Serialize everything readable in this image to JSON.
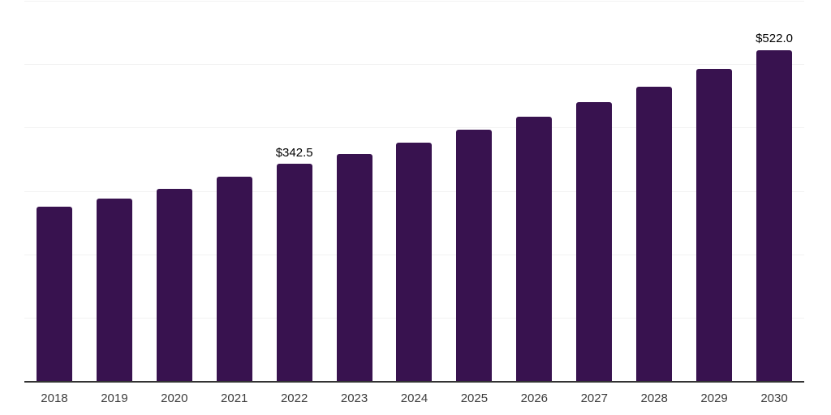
{
  "chart_data": {
    "type": "bar",
    "title": "",
    "xlabel": "",
    "ylabel": "",
    "categories": [
      "2018",
      "2019",
      "2020",
      "2021",
      "2022",
      "2023",
      "2024",
      "2025",
      "2026",
      "2027",
      "2028",
      "2029",
      "2030"
    ],
    "values": [
      275,
      288,
      303,
      323,
      342.5,
      358,
      376,
      396,
      417,
      440,
      464,
      492.5,
      522
    ],
    "annotations": [
      {
        "category": "2022",
        "label": "$342.5"
      },
      {
        "category": "2030",
        "label": "$522.0"
      }
    ],
    "ylim": [
      0,
      600
    ],
    "grid_step": 100,
    "grid": true,
    "legend_position": "none",
    "bar_color": "#38124F",
    "background_color": "#ffffff",
    "gridline_color": "#f2f2f2",
    "axis_line_color": "#333333",
    "tick_label_color": "#3d3d3d",
    "annotation_color": "#000000"
  }
}
